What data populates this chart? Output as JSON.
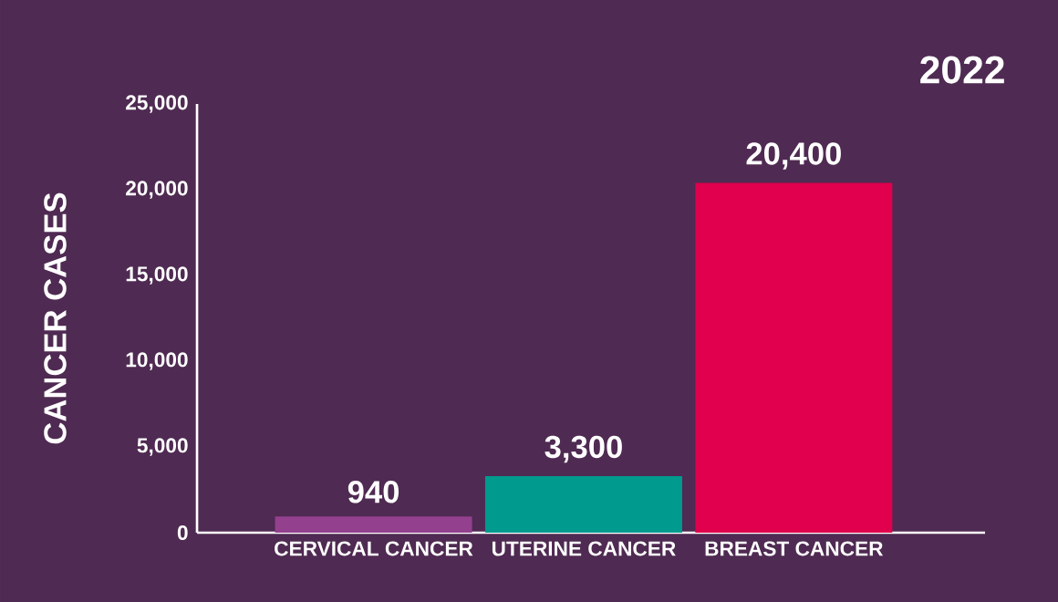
{
  "chart_data": {
    "type": "bar",
    "title": "2022",
    "ylabel": "CANCER CASES",
    "categories": [
      "CERVICAL CANCER",
      "UTERINE CANCER",
      "BREAST CANCER"
    ],
    "values": [
      940,
      3300,
      20400
    ],
    "value_labels": [
      "940",
      "3,300",
      "20,400"
    ],
    "colors": [
      "#93408f",
      "#009a8e",
      "#e0004d"
    ],
    "ylim": [
      0,
      25000
    ],
    "yticks": [
      0,
      {
        "value": 5000,
        "label": "5,000"
      },
      {
        "value": 10000,
        "label": "10,000"
      },
      {
        "value": 15000,
        "label": "15,000"
      },
      {
        "value": 20000,
        "label": "20,000"
      },
      {
        "value": 25000,
        "label": "25,000"
      }
    ],
    "grid": false
  }
}
